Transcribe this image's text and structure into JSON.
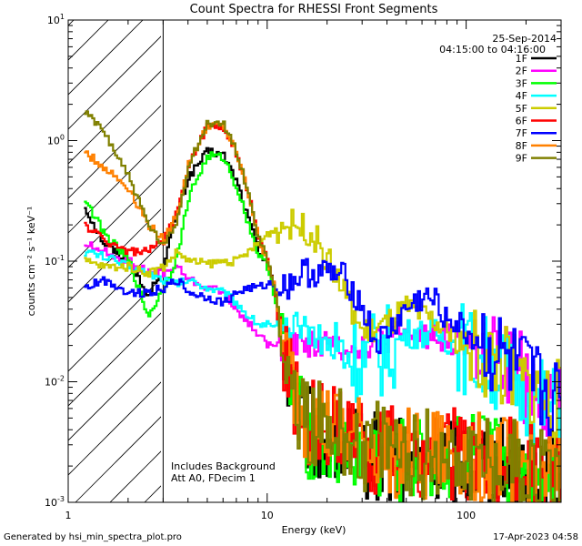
{
  "chart_data": {
    "type": "line",
    "title": "Count Spectra for RHESSI Front Segments",
    "xlabel": "Energy (keV)",
    "ylabel": "counts cm⁻² s⁻¹ keV⁻¹",
    "xscale": "log",
    "yscale": "log",
    "xlim": [
      1,
      300
    ],
    "ylim": [
      0.001,
      10
    ],
    "x_tick_labels": [
      "1",
      "10",
      "100"
    ],
    "y_tick_labels": [
      {
        "base": "10",
        "exp": "-3"
      },
      {
        "base": "10",
        "exp": "-2"
      },
      {
        "base": "10",
        "exp": "-1"
      },
      {
        "base": "10",
        "exp": "0"
      },
      {
        "base": "10",
        "exp": "1"
      }
    ],
    "hatched_region_keV": [
      1,
      3
    ],
    "date": "25-Sep-2014",
    "time_range": "04:15:00 to 04:16:00",
    "annotation_lines": [
      "Includes Background",
      "Att A0, FDecim 1"
    ],
    "series": [
      {
        "name": "1F",
        "color": "#000000",
        "x": [
          1.2,
          1.5,
          2,
          2.5,
          3,
          3.5,
          4,
          5,
          6,
          7,
          8,
          9,
          10,
          11,
          12,
          15,
          20,
          30,
          50,
          100,
          200,
          300
        ],
        "y": [
          0.28,
          0.14,
          0.1,
          0.05,
          0.1,
          0.25,
          0.5,
          0.82,
          0.75,
          0.45,
          0.22,
          0.12,
          0.1,
          0.05,
          0.015,
          0.004,
          0.003,
          0.0025,
          0.002,
          0.0025,
          0.002,
          0.0015
        ]
      },
      {
        "name": "2F",
        "color": "#ff00ff",
        "x": [
          1.2,
          1.5,
          2,
          2.5,
          3,
          3.5,
          4,
          5,
          6,
          7,
          8,
          9,
          10,
          12,
          15,
          20,
          30,
          50,
          70,
          100,
          150,
          200,
          300
        ],
        "y": [
          0.14,
          0.12,
          0.1,
          0.08,
          0.08,
          0.09,
          0.07,
          0.06,
          0.055,
          0.04,
          0.03,
          0.025,
          0.02,
          0.02,
          0.022,
          0.02,
          0.02,
          0.025,
          0.025,
          0.02,
          0.014,
          0.01,
          0.006
        ]
      },
      {
        "name": "3F",
        "color": "#00ff00",
        "x": [
          1.2,
          1.5,
          2,
          2.5,
          3,
          3.5,
          4,
          5,
          6,
          7,
          8,
          9,
          10,
          11,
          12,
          15,
          20,
          30,
          50,
          100,
          200,
          300
        ],
        "y": [
          0.33,
          0.17,
          0.1,
          0.035,
          0.06,
          0.11,
          0.35,
          0.75,
          0.72,
          0.4,
          0.2,
          0.11,
          0.09,
          0.045,
          0.014,
          0.004,
          0.003,
          0.0025,
          0.002,
          0.0025,
          0.002,
          0.0015
        ]
      },
      {
        "name": "4F",
        "color": "#00ffff",
        "x": [
          1.2,
          1.5,
          2,
          2.5,
          3,
          3.5,
          4,
          5,
          6,
          7,
          8,
          9,
          10,
          12,
          15,
          20,
          30,
          40,
          50,
          70,
          100,
          150,
          200,
          300
        ],
        "y": [
          0.12,
          0.11,
          0.09,
          0.08,
          0.07,
          0.065,
          0.07,
          0.06,
          0.055,
          0.045,
          0.035,
          0.03,
          0.03,
          0.025,
          0.03,
          0.02,
          0.015,
          0.018,
          0.025,
          0.025,
          0.018,
          0.012,
          0.008,
          0.005
        ]
      },
      {
        "name": "5F",
        "color": "#cccc00",
        "x": [
          1.2,
          1.5,
          2,
          2.5,
          3,
          3.5,
          4,
          5,
          6,
          7,
          8,
          9,
          10,
          12,
          14,
          16,
          18,
          20,
          25,
          30,
          40,
          50,
          70,
          100,
          150,
          200,
          300
        ],
        "y": [
          0.1,
          0.09,
          0.09,
          0.08,
          0.09,
          0.12,
          0.1,
          0.095,
          0.1,
          0.1,
          0.12,
          0.14,
          0.17,
          0.2,
          0.2,
          0.18,
          0.14,
          0.1,
          0.05,
          0.025,
          0.03,
          0.04,
          0.03,
          0.02,
          0.014,
          0.009,
          0.006
        ]
      },
      {
        "name": "6F",
        "color": "#ff0000",
        "x": [
          1.2,
          1.5,
          2,
          2.5,
          3,
          3.5,
          4,
          5,
          6,
          7,
          8,
          9,
          10,
          11,
          12,
          15,
          20,
          30,
          50,
          100,
          200,
          300
        ],
        "y": [
          0.2,
          0.15,
          0.12,
          0.12,
          0.15,
          0.25,
          0.65,
          1.35,
          1.3,
          0.75,
          0.35,
          0.15,
          0.1,
          0.05,
          0.016,
          0.005,
          0.004,
          0.003,
          0.0025,
          0.0025,
          0.002,
          0.0015
        ]
      },
      {
        "name": "7F",
        "color": "#0000ff",
        "x": [
          1.2,
          1.5,
          2,
          2.5,
          3,
          3.5,
          4,
          5,
          6,
          7,
          8,
          9,
          10,
          12,
          15,
          20,
          25,
          30,
          35,
          40,
          50,
          60,
          70,
          80,
          100,
          150,
          200,
          300
        ],
        "y": [
          0.06,
          0.07,
          0.055,
          0.055,
          0.06,
          0.07,
          0.055,
          0.05,
          0.045,
          0.055,
          0.06,
          0.06,
          0.065,
          0.06,
          0.08,
          0.08,
          0.07,
          0.04,
          0.02,
          0.025,
          0.04,
          0.05,
          0.045,
          0.035,
          0.025,
          0.015,
          0.01,
          0.006
        ]
      },
      {
        "name": "8F",
        "color": "#ff8000",
        "x": [
          1.2,
          1.5,
          2,
          2.5,
          3,
          3.5,
          4,
          5,
          6,
          7,
          8,
          9,
          10,
          11,
          12,
          15,
          20,
          30,
          50,
          100,
          200,
          300
        ],
        "y": [
          0.8,
          0.6,
          0.4,
          0.2,
          0.15,
          0.25,
          0.65,
          1.35,
          1.3,
          0.75,
          0.35,
          0.15,
          0.1,
          0.05,
          0.016,
          0.005,
          0.004,
          0.003,
          0.0025,
          0.0025,
          0.002,
          0.0015
        ]
      },
      {
        "name": "9F",
        "color": "#808000",
        "x": [
          1.2,
          1.5,
          2,
          2.5,
          3,
          3.5,
          4,
          5,
          6,
          7,
          8,
          9,
          10,
          11,
          12,
          15,
          20,
          30,
          50,
          100,
          200,
          300
        ],
        "y": [
          1.7,
          1.2,
          0.5,
          0.2,
          0.13,
          0.22,
          0.65,
          1.4,
          1.35,
          0.8,
          0.35,
          0.15,
          0.1,
          0.05,
          0.016,
          0.005,
          0.004,
          0.003,
          0.0025,
          0.0025,
          0.002,
          0.0015
        ]
      }
    ]
  },
  "footer": {
    "left": "Generated by hsi_min_spectra_plot.pro",
    "right": "17-Apr-2023 04:58"
  }
}
